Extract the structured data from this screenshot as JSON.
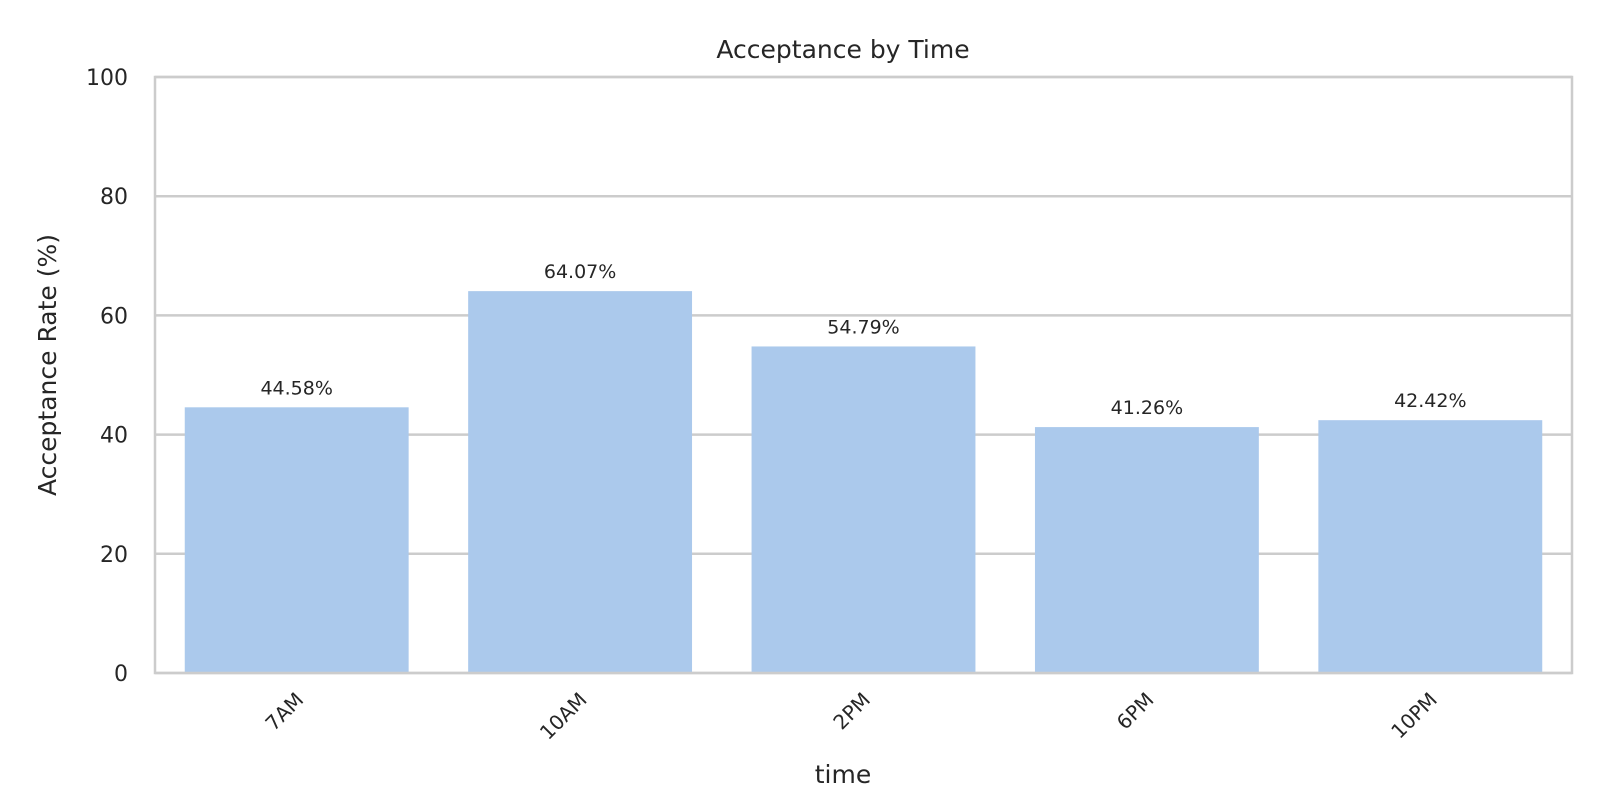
{
  "chart_data": {
    "type": "bar",
    "title": "Acceptance by Time",
    "xlabel": "time",
    "ylabel": "Acceptance Rate (%)",
    "categories": [
      "7AM",
      "10AM",
      "2PM",
      "6PM",
      "10PM"
    ],
    "values": [
      44.58,
      64.07,
      54.79,
      41.26,
      42.42
    ],
    "value_labels": [
      "44.58%",
      "64.07%",
      "54.79%",
      "41.26%",
      "42.42%"
    ],
    "ylim": [
      0,
      100
    ],
    "yticks": [
      0,
      20,
      40,
      60,
      80,
      100
    ],
    "ytick_labels": [
      "0",
      "20",
      "40",
      "60",
      "80",
      "100"
    ],
    "grid": "y-axis",
    "legend": "none",
    "x_tick_rotation": "45 degrees",
    "colors": {
      "bar": "#abc9ec",
      "grid": "#cccccc",
      "spine": "#cccccc",
      "text": "#262626",
      "background": "#ffffff"
    }
  }
}
